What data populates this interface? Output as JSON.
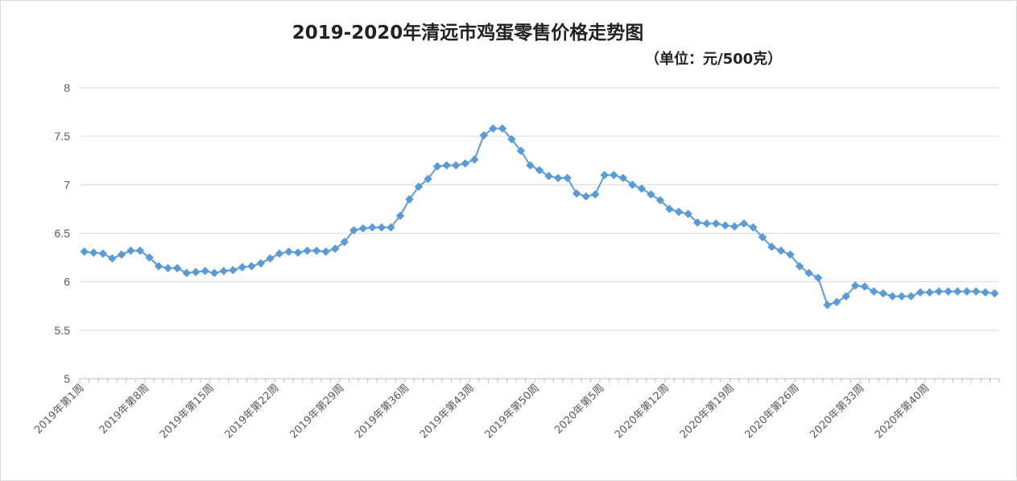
{
  "chart_data": {
    "type": "line",
    "title": "2019-2020年清远市鸡蛋零售价格走势图",
    "subtitle": "（单位：元/500克）",
    "ylim": [
      5,
      8
    ],
    "yticks": [
      "5",
      "5.5",
      "6",
      "6.5",
      "7",
      "7.5",
      "8"
    ],
    "grid": true,
    "x_tick_labels": [
      "2019年第1周",
      "2019年第8周",
      "2019年第15周",
      "2019年第22周",
      "2019年第29周",
      "2019年第36周",
      "2019年第43周",
      "2019年第50周",
      "2020年第5周",
      "2020年第12周",
      "2020年第19周",
      "2020年第26周",
      "2020年第33周",
      "2020年第40周"
    ],
    "x_tick_interval": 7,
    "series": [
      {
        "values": [
          6.31,
          6.3,
          6.29,
          6.24,
          6.28,
          6.32,
          6.32,
          6.25,
          6.16,
          6.14,
          6.14,
          6.09,
          6.1,
          6.11,
          6.09,
          6.11,
          6.12,
          6.15,
          6.16,
          6.19,
          6.24,
          6.29,
          6.31,
          6.3,
          6.32,
          6.32,
          6.31,
          6.34,
          6.41,
          6.53,
          6.55,
          6.56,
          6.56,
          6.56,
          6.68,
          6.85,
          6.98,
          7.06,
          7.19,
          7.2,
          7.2,
          7.22,
          7.26,
          7.51,
          7.58,
          7.58,
          7.47,
          7.35,
          7.2,
          7.15,
          7.09,
          7.07,
          7.07,
          6.91,
          6.88,
          6.9,
          7.1,
          7.1,
          7.07,
          7.0,
          6.96,
          6.9,
          6.84,
          6.75,
          6.72,
          6.7,
          6.61,
          6.6,
          6.6,
          6.58,
          6.57,
          6.6,
          6.56,
          6.46,
          6.36,
          6.32,
          6.28,
          6.16,
          6.09,
          6.04,
          5.76,
          5.79,
          5.85,
          5.96,
          5.95,
          5.9,
          5.88,
          5.85,
          5.85,
          5.85,
          5.89,
          5.89,
          5.9,
          5.9,
          5.9,
          5.9,
          5.9,
          5.89,
          5.88
        ]
      }
    ],
    "colors": {
      "series": "#5b9bd5",
      "grid": "#d9d9d9",
      "axis": "#bfbfbf"
    }
  }
}
